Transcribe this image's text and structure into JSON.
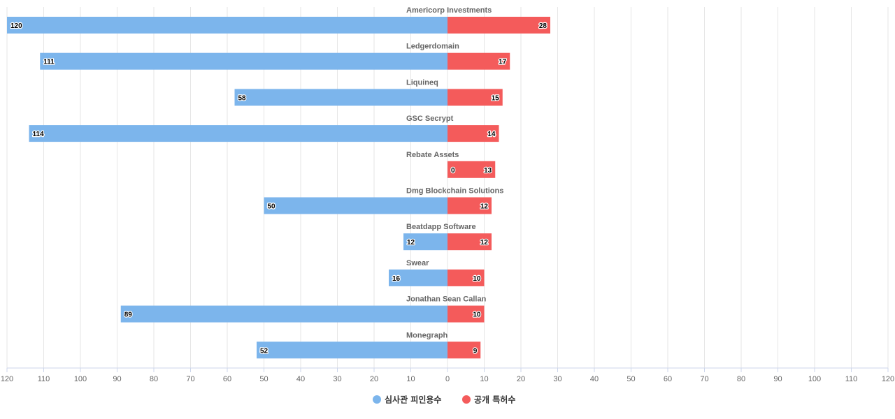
{
  "chart_data": {
    "type": "bar",
    "orientation": "horizontal-diverging",
    "categories": [
      "Americorp Investments",
      "Ledgerdomain",
      "Liquineq",
      "GSC Secrypt",
      "Rebate Assets",
      "Dmg Blockchain Solutions",
      "Beatdapp Software",
      "Swear",
      "Jonathan Sean Callan",
      "Monegraph"
    ],
    "series": [
      {
        "name": "심사관 피인용수",
        "color": "#7cb5ec",
        "side": "left",
        "values": [
          120,
          111,
          58,
          114,
          0,
          50,
          12,
          16,
          89,
          52
        ]
      },
      {
        "name": "공개 특허수",
        "color": "#f45b5b",
        "side": "right",
        "values": [
          28,
          17,
          15,
          14,
          13,
          12,
          12,
          10,
          10,
          9
        ]
      }
    ],
    "xlim": [
      -120,
      120
    ],
    "ticks": [
      "120",
      "110",
      "100",
      "90",
      "80",
      "70",
      "60",
      "50",
      "40",
      "30",
      "20",
      "10",
      "0",
      "10",
      "20",
      "30",
      "40",
      "50",
      "60",
      "70",
      "80",
      "90",
      "100",
      "110",
      "120"
    ],
    "grid": true,
    "legend_position": "bottom-center"
  }
}
